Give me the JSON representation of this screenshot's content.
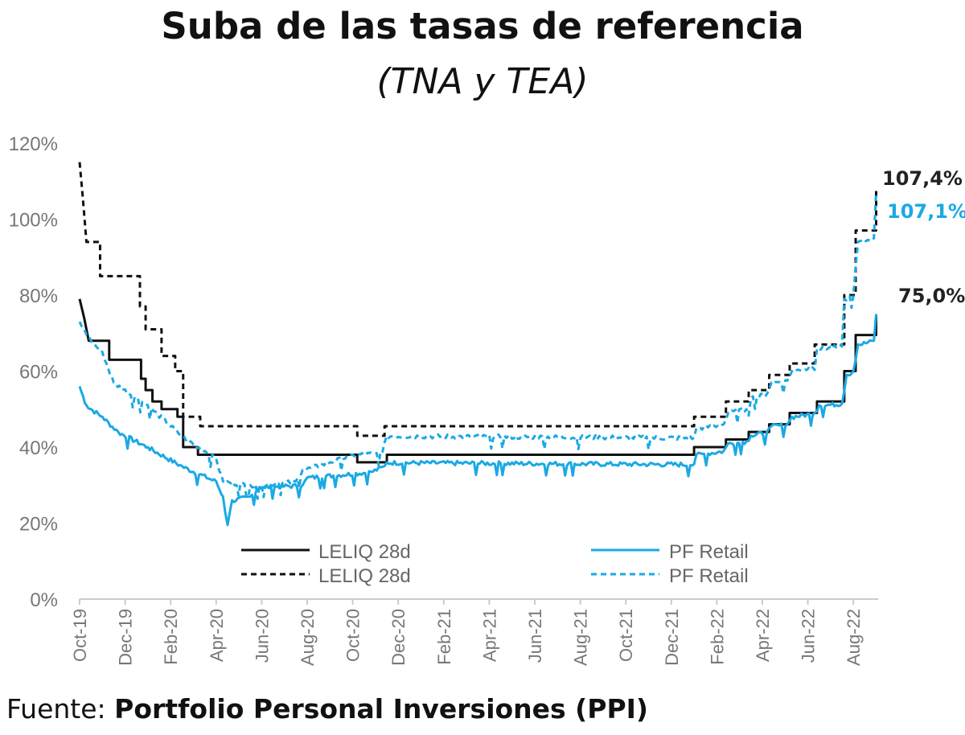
{
  "chart_data": {
    "type": "line",
    "title": "Suba de las tasas de referencia",
    "subtitle": "(TNA y TEA)",
    "x_unit": "months since Oct-19",
    "xlim": [
      0,
      36
    ],
    "ylim": [
      0,
      120
    ],
    "y_ticks": [
      "0%",
      "20%",
      "40%",
      "60%",
      "80%",
      "100%",
      "120%"
    ],
    "y_tick_values": [
      0,
      20,
      40,
      60,
      80,
      100,
      120
    ],
    "x_ticks": [
      "Oct-19",
      "Dec-19",
      "Feb-20",
      "Apr-20",
      "Jun-20",
      "Aug-20",
      "Oct-20",
      "Dec-20",
      "Feb-21",
      "Apr-21",
      "Jun-21",
      "Aug-21",
      "Oct-21",
      "Dec-21",
      "Feb-22",
      "Apr-22",
      "Jun-22",
      "Aug-22"
    ],
    "x_tick_values": [
      0,
      2,
      4,
      6,
      8,
      10,
      12,
      14,
      16,
      18,
      20,
      22,
      24,
      26,
      28,
      30,
      32,
      34
    ],
    "grid": false,
    "legend_position": "bottom-center",
    "series": [
      {
        "name": "LELIQ 28d",
        "style": "solid",
        "color": "#111111",
        "interp": "step",
        "points": [
          [
            0,
            79
          ],
          [
            0.2,
            74
          ],
          [
            0.4,
            68
          ],
          [
            1.3,
            63
          ],
          [
            2.7,
            58
          ],
          [
            2.9,
            55
          ],
          [
            3.2,
            52
          ],
          [
            3.6,
            50
          ],
          [
            4.3,
            48
          ],
          [
            4.55,
            40
          ],
          [
            5.2,
            38
          ],
          [
            12.2,
            36
          ],
          [
            13.5,
            38
          ],
          [
            27,
            40
          ],
          [
            28.4,
            42
          ],
          [
            29.4,
            44
          ],
          [
            30.3,
            46
          ],
          [
            31.2,
            49
          ],
          [
            32.4,
            52
          ],
          [
            33.6,
            60
          ],
          [
            34.1,
            69.5
          ],
          [
            35,
            75
          ]
        ]
      },
      {
        "name": "LELIQ 28d",
        "style": "dashed",
        "color": "#111111",
        "interp": "step",
        "points": [
          [
            0,
            115
          ],
          [
            0.15,
            105
          ],
          [
            0.3,
            94
          ],
          [
            0.9,
            85
          ],
          [
            2.65,
            77
          ],
          [
            2.9,
            71
          ],
          [
            3.6,
            64
          ],
          [
            4.2,
            60
          ],
          [
            4.55,
            48
          ],
          [
            5.3,
            45.5
          ],
          [
            12.2,
            43
          ],
          [
            13.4,
            45.5
          ],
          [
            27,
            48
          ],
          [
            28.4,
            52
          ],
          [
            29.4,
            55
          ],
          [
            30.3,
            59
          ],
          [
            31.2,
            62
          ],
          [
            32.3,
            67
          ],
          [
            33.6,
            80
          ],
          [
            34.1,
            97
          ],
          [
            35,
            107.4
          ]
        ]
      },
      {
        "name": "PF Retail",
        "style": "solid",
        "color": "#1aa9e4",
        "interp": "linear",
        "points": [
          [
            0,
            56
          ],
          [
            0.3,
            51
          ],
          [
            1,
            48
          ],
          [
            1.7,
            44
          ],
          [
            3,
            40
          ],
          [
            4.5,
            35
          ],
          [
            6,
            31
          ],
          [
            6.3,
            27
          ],
          [
            6.5,
            19.5
          ],
          [
            6.7,
            26
          ],
          [
            7.5,
            27
          ],
          [
            7.9,
            29.5
          ],
          [
            9.8,
            30
          ],
          [
            10,
            32
          ],
          [
            12.8,
            33.5
          ],
          [
            13.4,
            35
          ],
          [
            13.5,
            36
          ],
          [
            27,
            35.5
          ],
          [
            27.1,
            38
          ],
          [
            28.3,
            39
          ],
          [
            28.5,
            41
          ],
          [
            29.3,
            41.5
          ],
          [
            29.5,
            43
          ],
          [
            30.2,
            44
          ],
          [
            30.4,
            45.5
          ],
          [
            31.1,
            46
          ],
          [
            31.3,
            48
          ],
          [
            32.3,
            49
          ],
          [
            32.5,
            51
          ],
          [
            33.5,
            51.5
          ],
          [
            33.7,
            59
          ],
          [
            34.0,
            60
          ],
          [
            34.2,
            67
          ],
          [
            34.9,
            68
          ],
          [
            35,
            75
          ]
        ]
      },
      {
        "name": "PF Retail",
        "style": "dashed",
        "color": "#1aa9e4",
        "interp": "linear",
        "points": [
          [
            0,
            73
          ],
          [
            0.5,
            68
          ],
          [
            1,
            65
          ],
          [
            1.5,
            57
          ],
          [
            3,
            51
          ],
          [
            4.5,
            43
          ],
          [
            5.5,
            39
          ],
          [
            6,
            37
          ],
          [
            6.3,
            31
          ],
          [
            7.5,
            30
          ],
          [
            7.9,
            29.5
          ],
          [
            8,
            30
          ],
          [
            9.5,
            31
          ],
          [
            9.8,
            34
          ],
          [
            11,
            36
          ],
          [
            12,
            38
          ],
          [
            13.3,
            38.5
          ],
          [
            13.5,
            43
          ],
          [
            27,
            42.5
          ],
          [
            27.1,
            45
          ],
          [
            28.3,
            46
          ],
          [
            28.5,
            49
          ],
          [
            29.3,
            50
          ],
          [
            29.5,
            53
          ],
          [
            30.2,
            54
          ],
          [
            30.4,
            57
          ],
          [
            31.1,
            57.5
          ],
          [
            31.3,
            60
          ],
          [
            32.2,
            61
          ],
          [
            32.4,
            66
          ],
          [
            33.5,
            66.5
          ],
          [
            33.6,
            79
          ],
          [
            34.0,
            80
          ],
          [
            34.2,
            94
          ],
          [
            34.9,
            95
          ],
          [
            35,
            107.1
          ]
        ]
      }
    ],
    "end_labels": [
      {
        "text": "107,4%",
        "value": 107.4,
        "color": "#222222"
      },
      {
        "text": "107,1%",
        "value": 107.1,
        "color": "#1aa9e4"
      },
      {
        "text": "75,0%",
        "value": 75.0,
        "color": "#222222"
      }
    ]
  },
  "source": {
    "prefix": "Fuente:",
    "name": "Portfolio Personal Inversiones (PPI)"
  }
}
